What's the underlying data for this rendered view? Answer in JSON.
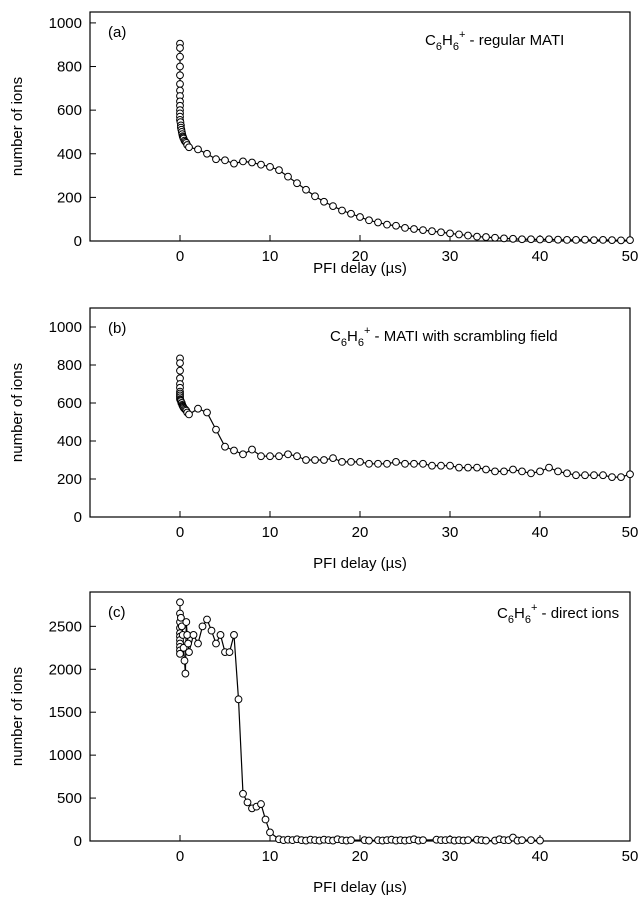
{
  "chart_data": [
    {
      "type": "line",
      "panel_label": "(a)",
      "annotation": {
        "species_base": "C",
        "sub1": "6",
        "mid": "H",
        "sub2": "6",
        "sup": "+",
        "rest": " - regular MATI"
      },
      "xlabel": "PFI delay (µs)",
      "ylabel": "number of ions",
      "xlim": [
        -10,
        50
      ],
      "ylim": [
        0,
        1050
      ],
      "xticks": [
        0,
        10,
        20,
        30,
        40,
        50
      ],
      "yticks": [
        0,
        200,
        400,
        600,
        800,
        1000
      ],
      "series": [
        {
          "x": [
            0,
            0,
            0,
            0,
            0,
            0,
            0,
            0,
            0,
            0,
            0,
            0,
            0,
            0,
            0.05,
            0.1,
            0.1,
            0.15,
            0.2,
            0.25,
            0.3,
            0.35,
            0.4,
            0.5,
            0.6,
            0.7,
            0.8,
            1,
            2,
            3,
            4,
            5,
            6,
            7,
            8,
            9,
            10,
            11,
            12,
            13,
            14,
            15,
            16,
            17,
            18,
            19,
            20,
            21,
            22,
            23,
            24,
            25,
            26,
            27,
            28,
            29,
            30,
            31,
            32,
            33,
            34,
            35,
            36,
            37,
            38,
            39,
            40,
            41,
            42,
            43,
            44,
            45,
            46,
            47,
            48,
            49,
            50
          ],
          "y": [
            905,
            885,
            845,
            800,
            760,
            720,
            690,
            665,
            640,
            620,
            600,
            585,
            570,
            555,
            545,
            530,
            520,
            510,
            500,
            490,
            480,
            475,
            470,
            460,
            455,
            450,
            440,
            430,
            420,
            400,
            375,
            370,
            355,
            365,
            360,
            350,
            340,
            325,
            295,
            265,
            235,
            205,
            180,
            160,
            140,
            125,
            110,
            95,
            85,
            75,
            70,
            60,
            55,
            50,
            45,
            40,
            35,
            30,
            25,
            20,
            18,
            15,
            12,
            10,
            8,
            8,
            7,
            8,
            6,
            5,
            5,
            6,
            4,
            5,
            4,
            3,
            4
          ]
        }
      ]
    },
    {
      "type": "line",
      "panel_label": "(b)",
      "annotation": {
        "species_base": "C",
        "sub1": "6",
        "mid": "H",
        "sub2": "6",
        "sup": "+",
        "rest": " - MATI with scrambling field"
      },
      "xlabel": "PFI delay (µs)",
      "ylabel": "number of ions",
      "xlim": [
        -10,
        50
      ],
      "ylim": [
        0,
        1100
      ],
      "xticks": [
        0,
        10,
        20,
        30,
        40,
        50
      ],
      "yticks": [
        0,
        200,
        400,
        600,
        800,
        1000
      ],
      "series": [
        {
          "x": [
            0,
            0,
            0,
            0,
            0,
            0,
            0,
            0,
            0,
            0,
            0,
            0.05,
            0.1,
            0.15,
            0.2,
            0.25,
            0.3,
            0.35,
            0.4,
            0.5,
            0.6,
            0.7,
            0.8,
            1,
            2,
            3,
            4,
            5,
            6,
            7,
            8,
            9,
            10,
            11,
            12,
            13,
            14,
            15,
            16,
            17,
            18,
            19,
            20,
            21,
            22,
            23,
            24,
            25,
            26,
            27,
            28,
            29,
            30,
            31,
            32,
            33,
            34,
            35,
            36,
            37,
            38,
            39,
            40,
            41,
            42,
            43,
            44,
            45,
            46,
            47,
            48,
            49,
            50
          ],
          "y": [
            835,
            810,
            770,
            730,
            700,
            680,
            660,
            650,
            640,
            630,
            620,
            615,
            610,
            600,
            600,
            590,
            585,
            580,
            575,
            570,
            565,
            560,
            550,
            540,
            570,
            550,
            460,
            370,
            350,
            330,
            355,
            320,
            320,
            320,
            330,
            320,
            300,
            300,
            300,
            310,
            290,
            290,
            290,
            280,
            280,
            280,
            290,
            280,
            280,
            280,
            270,
            270,
            270,
            260,
            260,
            260,
            250,
            240,
            240,
            250,
            240,
            230,
            240,
            260,
            240,
            230,
            220,
            220,
            220,
            220,
            210,
            210,
            225
          ]
        }
      ]
    },
    {
      "type": "line",
      "panel_label": "(c)",
      "annotation": {
        "species_base": "C",
        "sub1": "6",
        "mid": "H",
        "sub2": "6",
        "sup": "+",
        "rest": " - direct ions"
      },
      "xlabel": "PFI delay (µs)",
      "ylabel": "number of ions",
      "xlim": [
        -10,
        50
      ],
      "ylim": [
        0,
        2900
      ],
      "xticks": [
        0,
        10,
        20,
        30,
        40,
        50
      ],
      "yticks": [
        0,
        500,
        1000,
        1500,
        2000,
        2500
      ],
      "series": [
        {
          "x": [
            0,
            0,
            0,
            0,
            0,
            0,
            0,
            0,
            0,
            0,
            0,
            0.1,
            0.2,
            0.3,
            0.4,
            0.5,
            0.6,
            0.7,
            0.8,
            0.9,
            1,
            1.5,
            2,
            2.5,
            3,
            3.5,
            4,
            4.5,
            5,
            5.5,
            6,
            6.5,
            7,
            7.5,
            8,
            8.5,
            9,
            9.5,
            10,
            11,
            11.5,
            12,
            12.5,
            13,
            13.5,
            14,
            14.5,
            15,
            15.5,
            16,
            16.5,
            17,
            17.5,
            18,
            18.5,
            19,
            20.5,
            21,
            22,
            22.5,
            23,
            23.5,
            24,
            24.5,
            25,
            25.5,
            26,
            26.5,
            27,
            28.5,
            29,
            29.5,
            30,
            30.5,
            31,
            31.5,
            32,
            33,
            33.5,
            34,
            35,
            35.5,
            36,
            36.5,
            37,
            37.5,
            38,
            39,
            40
          ],
          "y": [
            2780,
            2650,
            2550,
            2480,
            2420,
            2380,
            2340,
            2300,
            2260,
            2220,
            2180,
            2600,
            2500,
            2400,
            2250,
            2100,
            1950,
            2550,
            2400,
            2300,
            2200,
            2400,
            2300,
            2500,
            2580,
            2450,
            2300,
            2400,
            2200,
            2200,
            2400,
            1650,
            550,
            450,
            380,
            400,
            430,
            250,
            100,
            20,
            10,
            15,
            10,
            20,
            10,
            5,
            15,
            10,
            5,
            15,
            10,
            5,
            20,
            10,
            5,
            10,
            10,
            5,
            10,
            5,
            10,
            15,
            5,
            10,
            5,
            10,
            20,
            5,
            10,
            15,
            10,
            10,
            15,
            5,
            10,
            5,
            10,
            15,
            10,
            5,
            5,
            20,
            10,
            10,
            40,
            5,
            10,
            10,
            5
          ]
        }
      ]
    }
  ]
}
